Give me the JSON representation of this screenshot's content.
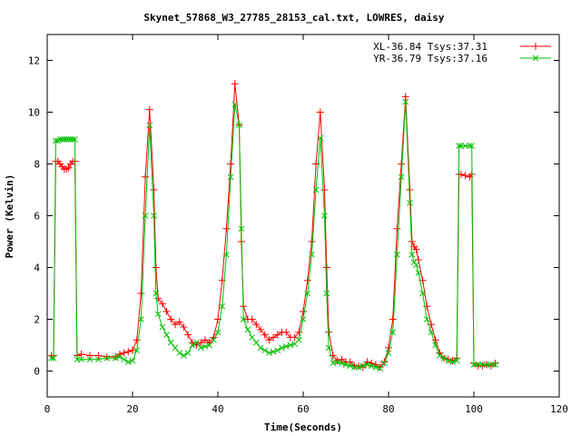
{
  "chart_data": {
    "type": "line",
    "title": "Skynet_57868_W3_27785_28153_cal.txt, LOWRES, daisy",
    "xlabel": "Time(Seconds)",
    "ylabel": "Power (Kelvin)",
    "xlim": [
      0,
      120
    ],
    "ylim": [
      -1,
      13
    ],
    "xticks": [
      0,
      20,
      40,
      60,
      80,
      100,
      120
    ],
    "yticks": [
      0,
      2,
      4,
      6,
      8,
      10,
      12
    ],
    "grid": false,
    "legend_position": "top-right",
    "series": [
      {
        "name": "XL-36.84 Tsys:37.31",
        "color": "#ff0000",
        "marker": "plus",
        "points": [
          [
            1,
            0.6
          ],
          [
            1.5,
            0.6
          ],
          [
            2,
            8.1
          ],
          [
            2.5,
            8.1
          ],
          [
            3,
            8.0
          ],
          [
            3.5,
            7.9
          ],
          [
            4,
            7.8
          ],
          [
            4.5,
            7.8
          ],
          [
            5,
            7.85
          ],
          [
            5.5,
            8.0
          ],
          [
            6,
            8.1
          ],
          [
            6.5,
            8.1
          ],
          [
            7,
            0.6
          ],
          [
            8,
            0.65
          ],
          [
            10,
            0.6
          ],
          [
            12,
            0.6
          ],
          [
            14,
            0.55
          ],
          [
            16,
            0.55
          ],
          [
            17,
            0.65
          ],
          [
            18,
            0.7
          ],
          [
            19,
            0.75
          ],
          [
            20,
            0.8
          ],
          [
            21,
            1.2
          ],
          [
            22,
            3.0
          ],
          [
            23,
            7.5
          ],
          [
            24,
            10.1
          ],
          [
            25,
            7.0
          ],
          [
            25.5,
            4.0
          ],
          [
            26,
            2.8
          ],
          [
            27,
            2.6
          ],
          [
            28,
            2.3
          ],
          [
            29,
            2.0
          ],
          [
            30,
            1.8
          ],
          [
            31,
            1.9
          ],
          [
            32,
            1.7
          ],
          [
            33,
            1.4
          ],
          [
            34,
            1.1
          ],
          [
            35,
            1.0
          ],
          [
            36,
            1.1
          ],
          [
            37,
            1.2
          ],
          [
            38,
            1.1
          ],
          [
            39,
            1.3
          ],
          [
            40,
            2.0
          ],
          [
            41,
            3.5
          ],
          [
            42,
            5.5
          ],
          [
            43,
            8.0
          ],
          [
            44,
            11.1
          ],
          [
            45,
            9.5
          ],
          [
            45.5,
            5.0
          ],
          [
            46,
            2.5
          ],
          [
            47,
            2.0
          ],
          [
            48,
            2.0
          ],
          [
            49,
            1.8
          ],
          [
            50,
            1.6
          ],
          [
            51,
            1.4
          ],
          [
            52,
            1.2
          ],
          [
            53,
            1.3
          ],
          [
            54,
            1.4
          ],
          [
            55,
            1.5
          ],
          [
            56,
            1.5
          ],
          [
            57,
            1.3
          ],
          [
            58,
            1.3
          ],
          [
            59,
            1.5
          ],
          [
            60,
            2.3
          ],
          [
            61,
            3.5
          ],
          [
            62,
            5.0
          ],
          [
            63,
            8.0
          ],
          [
            64,
            10.0
          ],
          [
            65,
            7.0
          ],
          [
            65.5,
            4.0
          ],
          [
            66,
            1.5
          ],
          [
            67,
            0.6
          ],
          [
            68,
            0.4
          ],
          [
            69,
            0.45
          ],
          [
            70,
            0.35
          ],
          [
            71,
            0.35
          ],
          [
            72,
            0.2
          ],
          [
            73,
            0.2
          ],
          [
            74,
            0.15
          ],
          [
            75,
            0.35
          ],
          [
            76,
            0.3
          ],
          [
            77,
            0.25
          ],
          [
            78,
            0.15
          ],
          [
            79,
            0.35
          ],
          [
            80,
            0.9
          ],
          [
            81,
            2.0
          ],
          [
            82,
            5.5
          ],
          [
            83,
            8.0
          ],
          [
            84,
            10.6
          ],
          [
            85,
            7.0
          ],
          [
            85.5,
            5.0
          ],
          [
            86,
            4.8
          ],
          [
            86.5,
            4.7
          ],
          [
            87,
            4.3
          ],
          [
            88,
            3.5
          ],
          [
            89,
            2.5
          ],
          [
            90,
            1.8
          ],
          [
            91,
            1.2
          ],
          [
            92,
            0.7
          ],
          [
            93,
            0.5
          ],
          [
            94,
            0.45
          ],
          [
            95,
            0.4
          ],
          [
            96,
            0.5
          ],
          [
            96.5,
            7.6
          ],
          [
            97,
            7.6
          ],
          [
            98,
            7.55
          ],
          [
            99,
            7.5
          ],
          [
            99.5,
            7.6
          ],
          [
            100,
            0.3
          ],
          [
            101,
            0.2
          ],
          [
            102,
            0.2
          ],
          [
            103,
            0.25
          ],
          [
            104,
            0.2
          ],
          [
            105,
            0.3
          ]
        ]
      },
      {
        "name": "YR-36.79 Tsys:37.16",
        "color": "#00c000",
        "marker": "cross",
        "points": [
          [
            1,
            0.5
          ],
          [
            1.5,
            0.5
          ],
          [
            2,
            8.9
          ],
          [
            2.5,
            8.9
          ],
          [
            3,
            8.95
          ],
          [
            3.5,
            8.95
          ],
          [
            4,
            8.95
          ],
          [
            4.5,
            8.95
          ],
          [
            5,
            8.95
          ],
          [
            5.5,
            8.95
          ],
          [
            6,
            8.95
          ],
          [
            6.5,
            8.95
          ],
          [
            7,
            0.45
          ],
          [
            8,
            0.45
          ],
          [
            10,
            0.45
          ],
          [
            12,
            0.45
          ],
          [
            14,
            0.5
          ],
          [
            16,
            0.5
          ],
          [
            17,
            0.55
          ],
          [
            18,
            0.45
          ],
          [
            19,
            0.35
          ],
          [
            20,
            0.4
          ],
          [
            21,
            0.8
          ],
          [
            22,
            2.0
          ],
          [
            23,
            6.0
          ],
          [
            24,
            9.5
          ],
          [
            25,
            6.0
          ],
          [
            25.5,
            3.0
          ],
          [
            26,
            2.2
          ],
          [
            27,
            1.7
          ],
          [
            28,
            1.4
          ],
          [
            29,
            1.1
          ],
          [
            30,
            0.9
          ],
          [
            31,
            0.7
          ],
          [
            32,
            0.6
          ],
          [
            33,
            0.7
          ],
          [
            34,
            1.0
          ],
          [
            35,
            1.1
          ],
          [
            36,
            0.9
          ],
          [
            37,
            0.95
          ],
          [
            38,
            1.0
          ],
          [
            39,
            1.2
          ],
          [
            40,
            1.5
          ],
          [
            41,
            2.5
          ],
          [
            42,
            4.5
          ],
          [
            43,
            7.5
          ],
          [
            44,
            10.3
          ],
          [
            45,
            9.5
          ],
          [
            45.5,
            5.5
          ],
          [
            46,
            2.0
          ],
          [
            47,
            1.6
          ],
          [
            48,
            1.3
          ],
          [
            49,
            1.1
          ],
          [
            50,
            0.9
          ],
          [
            51,
            0.8
          ],
          [
            52,
            0.7
          ],
          [
            53,
            0.75
          ],
          [
            54,
            0.8
          ],
          [
            55,
            0.9
          ],
          [
            56,
            0.95
          ],
          [
            57,
            1.0
          ],
          [
            58,
            1.05
          ],
          [
            59,
            1.2
          ],
          [
            60,
            2.0
          ],
          [
            61,
            3.0
          ],
          [
            62,
            4.5
          ],
          [
            63,
            7.0
          ],
          [
            64,
            9.0
          ],
          [
            65,
            6.0
          ],
          [
            65.5,
            3.0
          ],
          [
            66,
            0.9
          ],
          [
            67,
            0.3
          ],
          [
            68,
            0.35
          ],
          [
            69,
            0.3
          ],
          [
            70,
            0.25
          ],
          [
            71,
            0.2
          ],
          [
            72,
            0.15
          ],
          [
            73,
            0.15
          ],
          [
            74,
            0.2
          ],
          [
            75,
            0.25
          ],
          [
            76,
            0.2
          ],
          [
            77,
            0.15
          ],
          [
            78,
            0.1
          ],
          [
            79,
            0.3
          ],
          [
            80,
            0.7
          ],
          [
            81,
            1.5
          ],
          [
            82,
            4.5
          ],
          [
            83,
            7.5
          ],
          [
            84,
            10.4
          ],
          [
            85,
            6.5
          ],
          [
            85.5,
            4.5
          ],
          [
            86,
            4.2
          ],
          [
            86.5,
            4.1
          ],
          [
            87,
            3.8
          ],
          [
            88,
            3.0
          ],
          [
            89,
            2.0
          ],
          [
            90,
            1.5
          ],
          [
            91,
            1.0
          ],
          [
            92,
            0.6
          ],
          [
            93,
            0.5
          ],
          [
            94,
            0.4
          ],
          [
            95,
            0.35
          ],
          [
            96,
            0.4
          ],
          [
            96.5,
            8.7
          ],
          [
            97,
            8.7
          ],
          [
            98,
            8.7
          ],
          [
            99,
            8.7
          ],
          [
            99.5,
            8.7
          ],
          [
            100,
            0.25
          ],
          [
            101,
            0.25
          ],
          [
            102,
            0.25
          ],
          [
            103,
            0.25
          ],
          [
            104,
            0.25
          ],
          [
            105,
            0.25
          ]
        ]
      }
    ]
  }
}
